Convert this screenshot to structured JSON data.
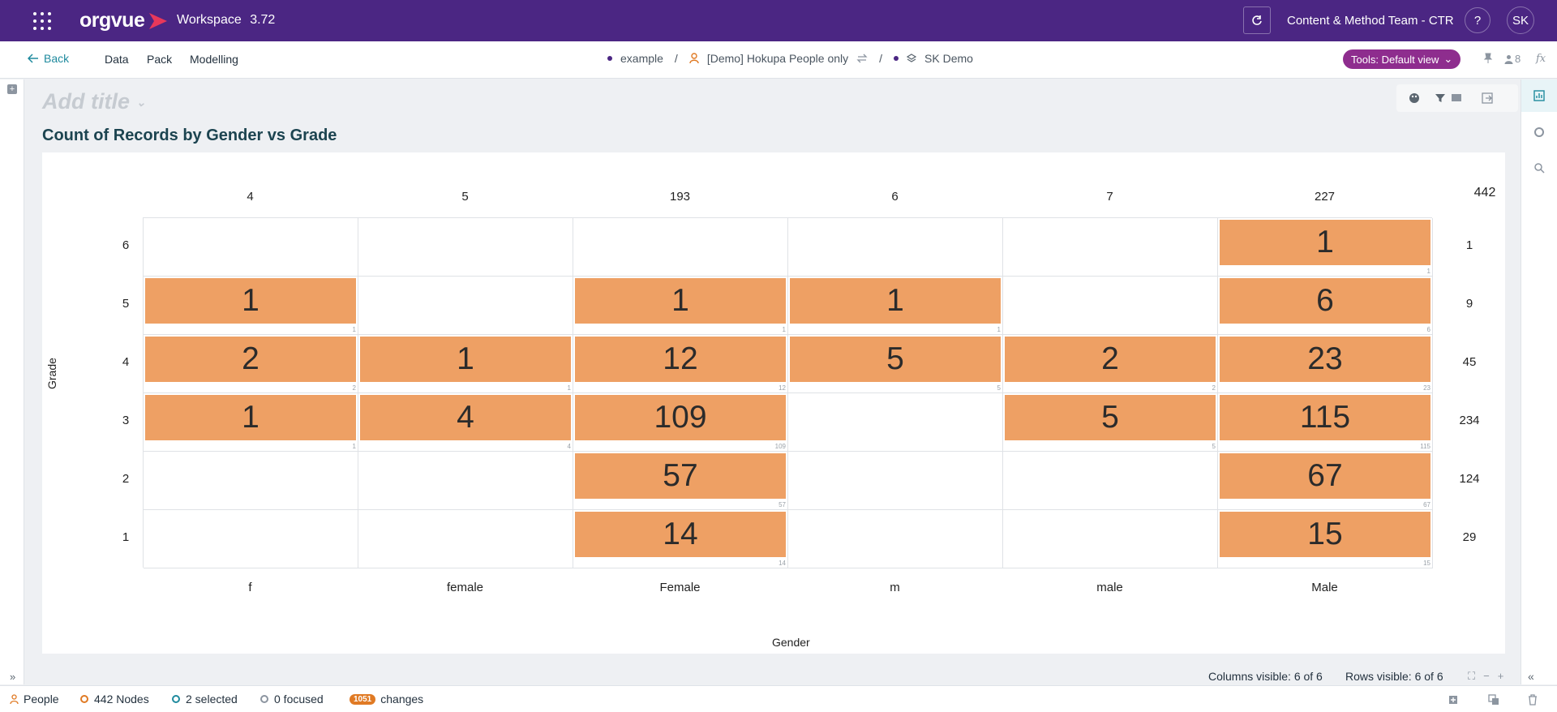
{
  "app": {
    "brand": "orgvue",
    "workspace_name": "Workspace",
    "workspace_version": "3.72",
    "team": "Content & Method Team - CTR",
    "help": "?",
    "avatar_initials": "SK"
  },
  "nav": {
    "back": "Back",
    "items": [
      "Data",
      "Pack",
      "Modelling"
    ],
    "crumbs": {
      "tenant": "example",
      "dataset": "[Demo] Hokupa People only",
      "view": "SK Demo"
    },
    "tools_label": "Tools: Default view",
    "people_count": "8"
  },
  "title": {
    "placeholder": "Add title",
    "chart_title": "Count of Records by Gender vs Grade"
  },
  "chart_data": {
    "type": "heatmap",
    "title": "Count of Records by Gender vs Grade",
    "xlabel": "Gender",
    "ylabel": "Grade",
    "columns": [
      "f",
      "female",
      "Female",
      "m",
      "male",
      "Male"
    ],
    "rows": [
      "6",
      "5",
      "4",
      "3",
      "2",
      "1"
    ],
    "column_totals": [
      "4",
      "5",
      "193",
      "6",
      "7",
      "227"
    ],
    "row_totals": [
      "1",
      "9",
      "45",
      "234",
      "124",
      "29"
    ],
    "grand_total": "442",
    "cells": [
      [
        null,
        null,
        null,
        null,
        null,
        1
      ],
      [
        1,
        null,
        1,
        1,
        null,
        6
      ],
      [
        2,
        1,
        12,
        5,
        2,
        23
      ],
      [
        1,
        4,
        109,
        null,
        5,
        115
      ],
      [
        null,
        null,
        57,
        null,
        null,
        67
      ],
      [
        null,
        null,
        14,
        null,
        null,
        15
      ]
    ],
    "bar_color": "#eea064"
  },
  "footer": {
    "columns_visible": "Columns visible: 6 of 6",
    "rows_visible": "Rows visible: 6 of 6"
  },
  "status": {
    "dataset": "People",
    "nodes": "442 Nodes",
    "selected": "2 selected",
    "focused": "0 focused",
    "changes_count": "1051",
    "changes_label": "changes"
  },
  "colors": {
    "header_bg": "#4b2683",
    "accent_teal": "#1f8a9e",
    "tools_pill": "#8e2d8e",
    "changes_badge": "#e07a24"
  }
}
